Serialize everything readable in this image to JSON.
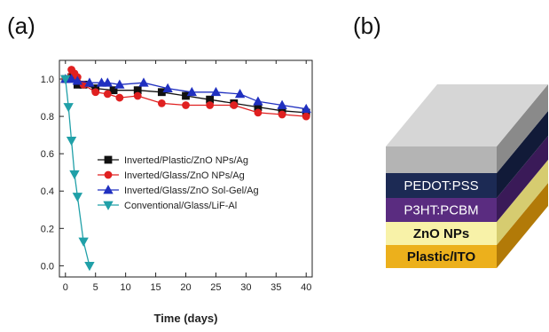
{
  "panels": {
    "a_label": "(a)",
    "b_label": "(b)"
  },
  "chart_data": {
    "type": "line",
    "title": "",
    "xlabel": "Time (days)",
    "ylabel": "",
    "xlim": [
      -1,
      41
    ],
    "ylim": [
      -0.06,
      1.1
    ],
    "xticks": [
      0,
      5,
      10,
      15,
      20,
      25,
      30,
      35,
      40
    ],
    "yticks": [
      0.0,
      0.2,
      0.4,
      0.6,
      0.8,
      1.0
    ],
    "ytick_labels": [
      "0.0",
      "0.2",
      "0.4",
      "0.6",
      "0.8",
      "1.0"
    ],
    "grid": false,
    "legend_position": "center-right",
    "series": [
      {
        "name": "Inverted/Plastic/ZnO NPs/Ag",
        "color": "#111111",
        "marker": "square",
        "x": [
          0,
          1,
          2,
          3,
          5,
          8,
          12,
          16,
          20,
          24,
          28,
          32,
          36,
          40
        ],
        "y": [
          1.0,
          1.01,
          0.97,
          0.97,
          0.95,
          0.94,
          0.94,
          0.93,
          0.91,
          0.89,
          0.87,
          0.85,
          0.83,
          0.82
        ]
      },
      {
        "name": "Inverted/Glass/ZnO NPs/Ag",
        "color": "#e02020",
        "marker": "circle",
        "x": [
          0,
          1,
          1.5,
          2,
          3,
          5,
          7,
          9,
          12,
          16,
          20,
          24,
          28,
          32,
          36,
          40
        ],
        "y": [
          1.0,
          1.05,
          1.03,
          1.01,
          0.97,
          0.93,
          0.92,
          0.9,
          0.91,
          0.87,
          0.86,
          0.86,
          0.86,
          0.82,
          0.81,
          0.8
        ]
      },
      {
        "name": "Inverted/Glass/ZnO Sol-Gel/Ag",
        "color": "#2030c0",
        "marker": "triangle-up",
        "x": [
          0,
          1,
          2,
          4,
          6,
          7,
          9,
          13,
          17,
          21,
          25,
          29,
          32,
          36,
          40
        ],
        "y": [
          1.0,
          1.0,
          0.99,
          0.98,
          0.98,
          0.98,
          0.97,
          0.98,
          0.95,
          0.93,
          0.93,
          0.92,
          0.88,
          0.86,
          0.84
        ]
      },
      {
        "name": "Conventional/Glass/LiF-Al",
        "color": "#20a0a8",
        "marker": "triangle-down",
        "x": [
          0,
          0.5,
          1,
          1.5,
          2,
          3,
          4
        ],
        "y": [
          1.0,
          0.85,
          0.67,
          0.49,
          0.37,
          0.13,
          0.0
        ]
      }
    ]
  },
  "device_stack": {
    "layers": [
      {
        "label": "Plastic/ITO",
        "front": "#ecb01c",
        "side": "#b27a08",
        "text_color": "#111111",
        "bold": true
      },
      {
        "label": "ZnO NPs",
        "front": "#f8f2a8",
        "side": "#d6cc70",
        "text_color": "#111111",
        "bold": true
      },
      {
        "label": "P3HT:PCBM",
        "front": "#5a2c80",
        "side": "#3a1a58",
        "text_color": "#ffffff",
        "bold": false
      },
      {
        "label": "PEDOT:PSS",
        "front": "#1c2a54",
        "side": "#111a38",
        "text_color": "#ffffff",
        "bold": false
      },
      {
        "label": "",
        "front": "#b4b4b4",
        "side": "#8a8a8a",
        "top": "#d6d6d6",
        "text_color": "#ffffff",
        "bold": false
      }
    ]
  }
}
